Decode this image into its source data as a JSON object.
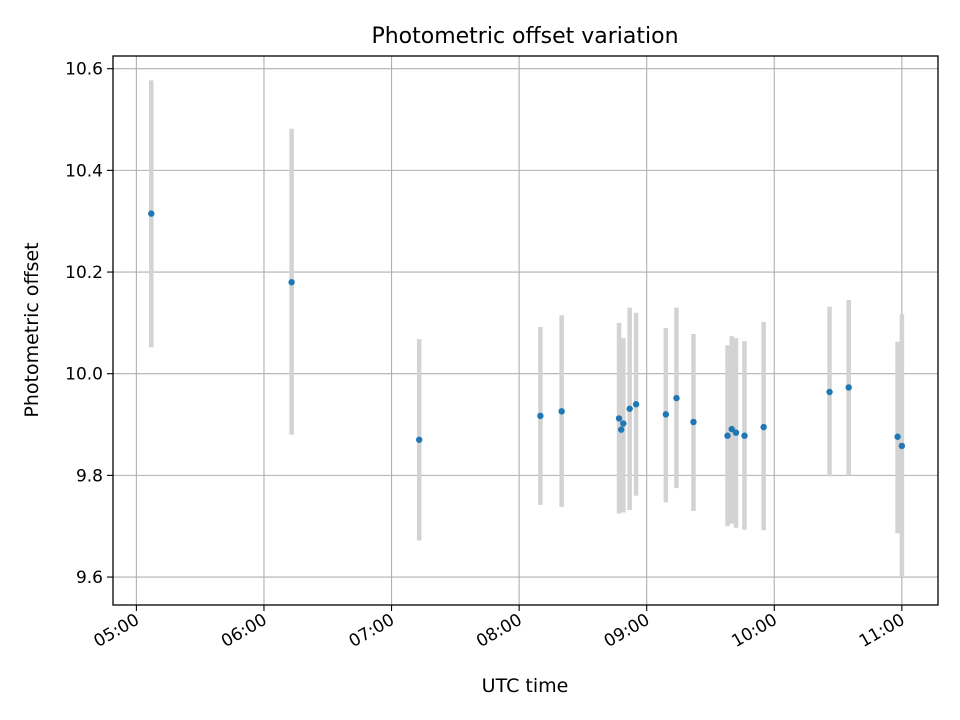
{
  "chart_data": {
    "type": "scatter",
    "title": "Photometric offset variation",
    "xlabel": "UTC time",
    "ylabel": "Photometric offset",
    "x_axis_type": "time",
    "xlim": [
      "04:49",
      "11:17"
    ],
    "ylim": [
      9.545,
      10.625
    ],
    "x_ticks": [
      "05:00",
      "06:00",
      "07:00",
      "08:00",
      "09:00",
      "10:00",
      "11:00"
    ],
    "y_ticks": [
      9.6,
      9.8,
      10.0,
      10.2,
      10.4,
      10.6
    ],
    "y_tick_labels": [
      "9.6",
      "9.8",
      "10.0",
      "10.2",
      "10.4",
      "10.6"
    ],
    "grid": true,
    "point_color": "#1f77b4",
    "errorbar_color": "#d3d3d3",
    "points": [
      {
        "x": "05:07",
        "y": 10.315,
        "err_low": 10.052,
        "err_high": 10.577
      },
      {
        "x": "06:13",
        "y": 10.18,
        "err_low": 9.88,
        "err_high": 10.482
      },
      {
        "x": "07:13",
        "y": 9.87,
        "err_low": 9.672,
        "err_high": 10.068
      },
      {
        "x": "08:10",
        "y": 9.917,
        "err_low": 9.742,
        "err_high": 10.092
      },
      {
        "x": "08:20",
        "y": 9.926,
        "err_low": 9.738,
        "err_high": 10.115
      },
      {
        "x": "08:47",
        "y": 9.912,
        "err_low": 9.725,
        "err_high": 10.1
      },
      {
        "x": "08:48",
        "y": 9.89,
        "err_low": 9.727,
        "err_high": 10.07
      },
      {
        "x": "08:49",
        "y": 9.902,
        "err_low": 9.727,
        "err_high": 10.07
      },
      {
        "x": "08:52",
        "y": 9.931,
        "err_low": 9.732,
        "err_high": 10.13
      },
      {
        "x": "08:55",
        "y": 9.94,
        "err_low": 9.76,
        "err_high": 10.12
      },
      {
        "x": "09:09",
        "y": 9.92,
        "err_low": 9.747,
        "err_high": 10.09
      },
      {
        "x": "09:14",
        "y": 9.952,
        "err_low": 9.775,
        "err_high": 10.13
      },
      {
        "x": "09:22",
        "y": 9.905,
        "err_low": 9.73,
        "err_high": 10.078
      },
      {
        "x": "09:38",
        "y": 9.878,
        "err_low": 9.7,
        "err_high": 10.056
      },
      {
        "x": "09:40",
        "y": 9.891,
        "err_low": 9.705,
        "err_high": 10.074
      },
      {
        "x": "09:42",
        "y": 9.884,
        "err_low": 9.697,
        "err_high": 10.07
      },
      {
        "x": "09:46",
        "y": 9.878,
        "err_low": 9.693,
        "err_high": 10.064
      },
      {
        "x": "09:55",
        "y": 9.895,
        "err_low": 9.692,
        "err_high": 10.102
      },
      {
        "x": "10:26",
        "y": 9.964,
        "err_low": 9.798,
        "err_high": 10.132
      },
      {
        "x": "10:35",
        "y": 9.973,
        "err_low": 9.8,
        "err_high": 10.145
      },
      {
        "x": "10:58",
        "y": 9.876,
        "err_low": 9.686,
        "err_high": 10.063
      },
      {
        "x": "11:00",
        "y": 9.858,
        "err_low": 9.6,
        "err_high": 10.117
      }
    ]
  }
}
